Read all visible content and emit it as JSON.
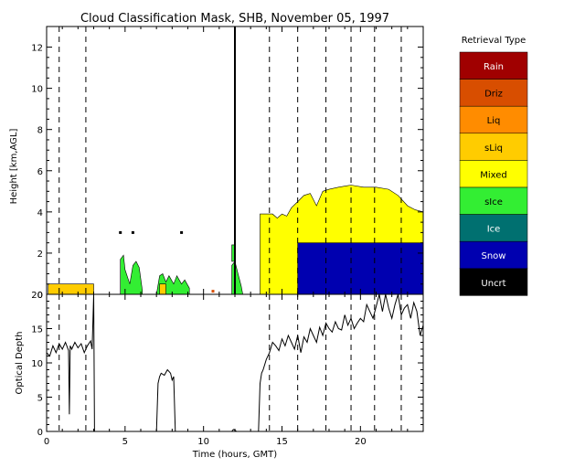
{
  "chart_data": [
    {
      "type": "area",
      "title": "Cloud Classification Mask, SHB, November 05, 1997",
      "ylabel": "Height [km,AGL]",
      "xlim": [
        0,
        24
      ],
      "ylim": [
        0,
        13
      ],
      "x_ticks": [
        0,
        5,
        10,
        15,
        20
      ],
      "y_ticks": [
        0,
        2,
        4,
        6,
        8,
        10,
        12
      ],
      "dashed_lines_x": [
        0.8,
        2.5,
        14.2,
        16.0,
        17.8,
        19.4,
        20.9,
        22.6
      ],
      "legend": {
        "title": "Retrieval Type",
        "entries": [
          {
            "label": "Rain",
            "color": "#a00000"
          },
          {
            "label": "Driz",
            "color": "#d84e00"
          },
          {
            "label": "Liq",
            "color": "#ff8c00"
          },
          {
            "label": "sLiq",
            "color": "#ffcc00"
          },
          {
            "label": "Mixed",
            "color": "#ffff00"
          },
          {
            "label": "sIce",
            "color": "#33ee33"
          },
          {
            "label": "Ice",
            "color": "#007070"
          },
          {
            "label": "Snow",
            "color": "#0000b0"
          },
          {
            "label": "Uncrt",
            "color": "#000000"
          }
        ]
      },
      "regions": [
        {
          "type": "sLiq",
          "points": [
            [
              0.1,
              0
            ],
            [
              0.1,
              0.5
            ],
            [
              3.0,
              0.5
            ],
            [
              3.0,
              0
            ]
          ]
        },
        {
          "type": "sIce",
          "points": [
            [
              4.7,
              0
            ],
            [
              4.7,
              1.7
            ],
            [
              4.9,
              1.9
            ],
            [
              5.0,
              1.2
            ],
            [
              5.3,
              0.5
            ],
            [
              5.5,
              1.4
            ],
            [
              5.7,
              1.6
            ],
            [
              5.9,
              1.3
            ],
            [
              6.1,
              0.2
            ],
            [
              6.1,
              0
            ]
          ]
        },
        {
          "type": "sIce",
          "points": [
            [
              7.0,
              0
            ],
            [
              7.2,
              0.9
            ],
            [
              7.4,
              1.0
            ],
            [
              7.6,
              0.6
            ],
            [
              7.8,
              0.9
            ],
            [
              8.1,
              0.5
            ],
            [
              8.3,
              0.9
            ],
            [
              8.6,
              0.5
            ],
            [
              8.8,
              0.7
            ],
            [
              9.1,
              0.3
            ],
            [
              9.1,
              0
            ]
          ]
        },
        {
          "type": "sLiq",
          "points": [
            [
              7.2,
              0
            ],
            [
              7.2,
              0.5
            ],
            [
              7.6,
              0.5
            ],
            [
              7.6,
              0
            ]
          ]
        },
        {
          "type": "sIce",
          "points": [
            [
              11.8,
              0
            ],
            [
              11.8,
              1.4
            ],
            [
              12.0,
              1.6
            ],
            [
              12.2,
              1.0
            ],
            [
              12.4,
              0.4
            ],
            [
              12.5,
              0
            ]
          ]
        },
        {
          "type": "sIce",
          "points": [
            [
              11.8,
              1.6
            ],
            [
              11.8,
              2.4
            ],
            [
              12.0,
              2.4
            ],
            [
              12.0,
              1.6
            ]
          ]
        },
        {
          "type": "Mixed",
          "points": [
            [
              13.6,
              0
            ],
            [
              13.6,
              3.9
            ],
            [
              14.4,
              3.9
            ],
            [
              14.7,
              3.7
            ],
            [
              15.0,
              3.9
            ],
            [
              15.3,
              3.8
            ],
            [
              15.6,
              4.2
            ],
            [
              16.0,
              4.5
            ],
            [
              16.4,
              4.8
            ],
            [
              16.8,
              4.9
            ],
            [
              17.2,
              4.3
            ],
            [
              17.6,
              5.0
            ],
            [
              18.0,
              5.1
            ],
            [
              18.6,
              5.2
            ],
            [
              19.4,
              5.3
            ],
            [
              20.2,
              5.2
            ],
            [
              21.0,
              5.2
            ],
            [
              21.8,
              5.1
            ],
            [
              22.4,
              4.8
            ],
            [
              23.0,
              4.3
            ],
            [
              23.5,
              4.1
            ],
            [
              24,
              4.0
            ],
            [
              24,
              0
            ]
          ]
        },
        {
          "type": "Snow",
          "points": [
            [
              16.0,
              0
            ],
            [
              16.0,
              2.5
            ],
            [
              24,
              2.5
            ],
            [
              24,
              0
            ]
          ]
        }
      ],
      "points": [
        {
          "type": "Uncrt",
          "x": 4.7,
          "y": 3.0
        },
        {
          "type": "Uncrt",
          "x": 5.5,
          "y": 3.0
        },
        {
          "type": "Uncrt",
          "x": 8.6,
          "y": 3.0
        },
        {
          "type": "Driz",
          "x": 10.6,
          "y": 0.15
        }
      ],
      "spikes": [
        {
          "x": 12.0,
          "y0": 0,
          "y1": 13
        }
      ]
    },
    {
      "type": "line",
      "xlabel": "Time (hours, GMT)",
      "ylabel": "Optical Depth",
      "xlim": [
        0,
        24
      ],
      "ylim": [
        0,
        20
      ],
      "x_ticks": [
        0,
        5,
        10,
        15,
        20
      ],
      "y_ticks": [
        0,
        5,
        10,
        15,
        20
      ],
      "dashed_lines_x": [
        0.8,
        2.5,
        14.2,
        16.0,
        17.8,
        19.4,
        20.9,
        22.6
      ],
      "series": [
        {
          "x": [
            0,
            0.2,
            0.4,
            0.6,
            0.8,
            1.0,
            1.2,
            1.4,
            1.45,
            1.5,
            1.6,
            1.8,
            2.0,
            2.2,
            2.4,
            2.6,
            2.8,
            2.9,
            3.0,
            3.05,
            3.1,
            3.3,
            7.0,
            7.1,
            7.2,
            7.3,
            7.5,
            7.7,
            7.9,
            8.0,
            8.1,
            8.2,
            8.4,
            11.8,
            11.9,
            12.0,
            12.1,
            13.5,
            13.6,
            13.7,
            13.8,
            14.0,
            14.2,
            14.4,
            14.6,
            14.8,
            15.0,
            15.2,
            15.4,
            15.6,
            15.8,
            16.0,
            16.2,
            16.4,
            16.6,
            16.8,
            17.0,
            17.2,
            17.4,
            17.6,
            17.8,
            18.0,
            18.2,
            18.4,
            18.6,
            18.8,
            19.0,
            19.2,
            19.4,
            19.6,
            19.8,
            20.0,
            20.2,
            20.4,
            20.6,
            20.8,
            21.0,
            21.2,
            21.4,
            21.6,
            21.8,
            22.0,
            22.2,
            22.4,
            22.6,
            22.8,
            23.0,
            23.2,
            23.4,
            23.6,
            23.8,
            24.0
          ],
          "values": [
            11.5,
            11.0,
            12.5,
            11.5,
            12.8,
            12.0,
            13.0,
            11.8,
            2.5,
            12.5,
            12.0,
            13.0,
            12.2,
            12.8,
            11.5,
            12.5,
            13.2,
            12.0,
            20,
            0,
            0,
            0,
            0,
            7.0,
            8.0,
            8.5,
            8.2,
            9.0,
            8.5,
            7.5,
            8.0,
            0,
            0,
            0,
            0.3,
            0.2,
            0,
            0,
            7.0,
            8.5,
            9.0,
            10.5,
            11.5,
            13.0,
            12.5,
            11.8,
            13.5,
            12.5,
            14.0,
            13.0,
            12.0,
            14.0,
            11.5,
            13.8,
            13.0,
            15.0,
            14.0,
            13.0,
            15.2,
            14.0,
            15.8,
            15.0,
            14.5,
            16.0,
            15.0,
            14.8,
            17.0,
            15.5,
            16.5,
            15.0,
            15.8,
            16.5,
            16.0,
            18.5,
            17.5,
            16.5,
            18.2,
            20,
            17.5,
            20,
            18.0,
            16.5,
            18.5,
            20,
            17.0,
            18.0,
            18.5,
            16.5,
            18.8,
            17.5,
            14.0,
            15.5
          ]
        }
      ]
    }
  ]
}
